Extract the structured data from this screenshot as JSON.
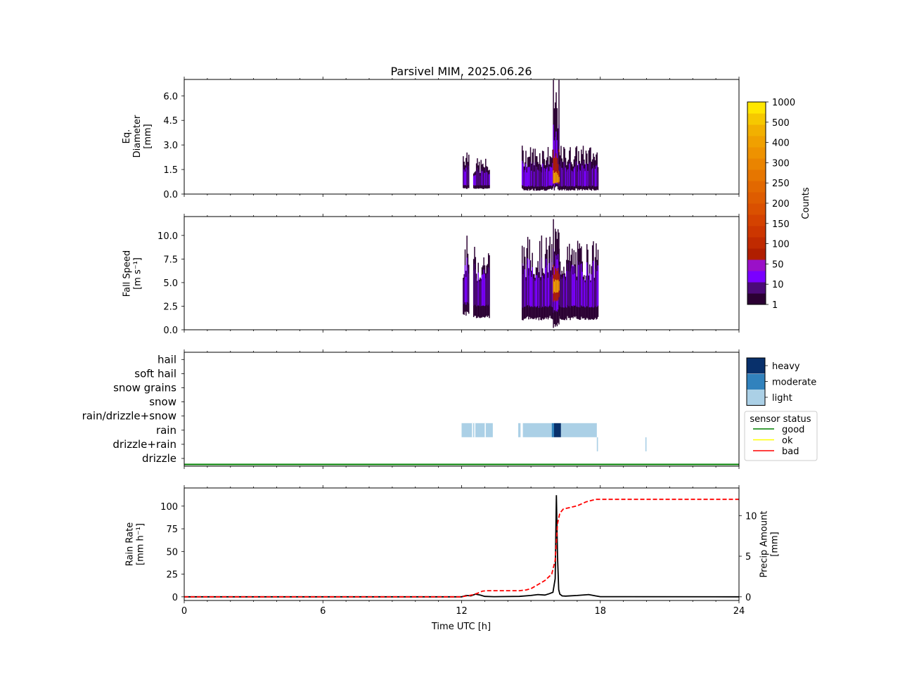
{
  "figure": {
    "title": "Parsivel MIM, 2025.06.26"
  },
  "colors": {
    "counts_colorbar": [
      "#2b0033",
      "#4b0a78",
      "#7a00ff",
      "#9a10c8",
      "#b01e00",
      "#c02a00",
      "#cc3600",
      "#d44200",
      "#da5000",
      "#de5c00",
      "#e26800",
      "#e67600",
      "#ea8400",
      "#ee9200",
      "#f0a000",
      "#f2b000",
      "#f6c800",
      "#ffe600"
    ],
    "intensity": {
      "heavy": "#08306b",
      "moderate": "#3182bd",
      "light": "#abd0e6"
    },
    "status": {
      "good": "#008000",
      "ok": "#ffff00",
      "bad": "#ff0000"
    },
    "rain_rate_line": "#000000",
    "precip_amount_line": "#ff0000"
  },
  "chart_data": [
    {
      "type": "heatmap",
      "panel": "diameter",
      "ylabel_lines": [
        "Eq.",
        "Diameter",
        "[mm]"
      ],
      "ylim": [
        0,
        7
      ],
      "yticks": [
        "0.0",
        "1.5",
        "3.0",
        "4.5",
        "6.0"
      ],
      "ytick_values": [
        0,
        1.5,
        3.0,
        4.5,
        6.0
      ],
      "xlim": [
        0,
        24
      ],
      "colorbar": {
        "label": "Counts",
        "tick_labels": [
          "1",
          "10",
          "50",
          "100",
          "150",
          "200",
          "250",
          "300",
          "400",
          "500",
          "1000"
        ]
      },
      "bursts": [
        {
          "t0": 12.05,
          "t1": 12.3,
          "dmin": 0.3,
          "dmax": 3.0
        },
        {
          "t0": 12.5,
          "t1": 13.2,
          "dmin": 0.3,
          "dmax": 2.2
        },
        {
          "t0": 14.6,
          "t1": 15.95,
          "dmin": 0.2,
          "dmax": 3.0
        },
        {
          "t0": 15.95,
          "t1": 16.2,
          "dmin": 0.2,
          "dmax": 7.0
        },
        {
          "t0": 16.2,
          "t1": 17.9,
          "dmin": 0.2,
          "dmax": 3.0
        }
      ]
    },
    {
      "type": "heatmap",
      "panel": "fall_speed",
      "ylabel_lines": [
        "Fall Speed",
        "[m s⁻¹]"
      ],
      "ylim": [
        0,
        12
      ],
      "yticks": [
        "0.0",
        "2.5",
        "5.0",
        "7.5",
        "10.0"
      ],
      "ytick_values": [
        0,
        2.5,
        5.0,
        7.5,
        10.0
      ],
      "xlim": [
        0,
        24
      ],
      "bursts": [
        {
          "t0": 12.05,
          "t1": 12.3,
          "vmin": 1.5,
          "vmax": 10.0
        },
        {
          "t0": 12.5,
          "t1": 13.2,
          "vmin": 1.2,
          "vmax": 9.0
        },
        {
          "t0": 14.6,
          "t1": 15.95,
          "vmin": 1.0,
          "vmax": 10.0
        },
        {
          "t0": 15.95,
          "t1": 16.2,
          "vmin": 0.2,
          "vmax": 12.0
        },
        {
          "t0": 16.2,
          "t1": 17.9,
          "vmin": 1.0,
          "vmax": 9.5
        }
      ]
    },
    {
      "type": "heatmap",
      "panel": "precip_type",
      "categories": [
        "drizzle",
        "drizzle+rain",
        "rain",
        "rain/drizzle+snow",
        "snow",
        "snow grains",
        "soft hail",
        "hail"
      ],
      "xlim": [
        0,
        24
      ],
      "intensity_legend": [
        "heavy",
        "moderate",
        "light"
      ],
      "status_legend_title": "sensor status",
      "status_legend": [
        "good",
        "ok",
        "bad"
      ],
      "segments": [
        {
          "category": "rain",
          "t0": 12.0,
          "t1": 13.35,
          "intensity": "light"
        },
        {
          "category": "rain",
          "t0": 14.45,
          "t1": 14.55,
          "intensity": "light"
        },
        {
          "category": "rain",
          "t0": 14.65,
          "t1": 15.9,
          "intensity": "light"
        },
        {
          "category": "rain",
          "t0": 15.9,
          "t1": 16.0,
          "intensity": "moderate"
        },
        {
          "category": "rain",
          "t0": 16.0,
          "t1": 16.3,
          "intensity": "heavy"
        },
        {
          "category": "rain",
          "t0": 16.3,
          "t1": 17.85,
          "intensity": "light"
        },
        {
          "category": "drizzle+rain",
          "t0": 17.85,
          "t1": 17.9,
          "intensity": "light"
        },
        {
          "category": "drizzle+rain",
          "t0": 19.95,
          "t1": 20.0,
          "intensity": "light"
        }
      ],
      "status_line": "good"
    },
    {
      "type": "line",
      "panel": "rain",
      "xlabel": "Time UTC [h]",
      "xticks": [
        "0",
        "6",
        "12",
        "18",
        "24"
      ],
      "xtick_values": [
        0,
        6,
        12,
        18,
        24
      ],
      "xlim": [
        0,
        24
      ],
      "left_axis": {
        "ylabel_lines": [
          "Rain Rate",
          "[mm h⁻¹]"
        ],
        "ylim": [
          -4,
          120
        ],
        "yticks": [
          "0",
          "25",
          "50",
          "75",
          "100"
        ],
        "ytick_values": [
          0,
          25,
          50,
          75,
          100
        ]
      },
      "right_axis": {
        "ylabel_lines": [
          "Precip Amount",
          "[mm]"
        ],
        "ylim": [
          -0.45,
          13.4
        ],
        "yticks": [
          "0",
          "5",
          "10"
        ],
        "ytick_values": [
          0,
          5,
          10
        ]
      },
      "series": [
        {
          "axis": "left",
          "x": [
            0,
            12.0,
            12.2,
            12.4,
            12.6,
            12.8,
            13.0,
            13.4,
            14.5,
            15.0,
            15.3,
            15.6,
            15.8,
            15.95,
            16.05,
            16.1,
            16.15,
            16.2,
            16.25,
            16.35,
            16.5,
            17.0,
            17.5,
            17.8,
            18.0,
            24
          ],
          "y": [
            0,
            0,
            1.5,
            1.0,
            3.0,
            2.0,
            0.5,
            0.2,
            0.5,
            1.5,
            2.5,
            2.0,
            3.5,
            5.0,
            20.0,
            112.0,
            45.0,
            8.0,
            3.0,
            1.0,
            0.8,
            1.5,
            2.5,
            1.0,
            0.2,
            0
          ]
        },
        {
          "axis": "right",
          "x": [
            0,
            12.0,
            12.3,
            12.5,
            12.7,
            12.9,
            13.1,
            14.5,
            14.8,
            15.0,
            15.3,
            15.6,
            15.9,
            16.05,
            16.15,
            16.25,
            16.4,
            16.7,
            17.0,
            17.4,
            17.8,
            18.0,
            24
          ],
          "y": [
            0,
            0,
            0.15,
            0.25,
            0.45,
            0.7,
            0.75,
            0.75,
            0.85,
            1.0,
            1.5,
            2.0,
            2.8,
            4.5,
            9.0,
            10.3,
            10.8,
            11.0,
            11.2,
            11.7,
            12.0,
            12.0,
            12.0
          ]
        }
      ]
    }
  ]
}
